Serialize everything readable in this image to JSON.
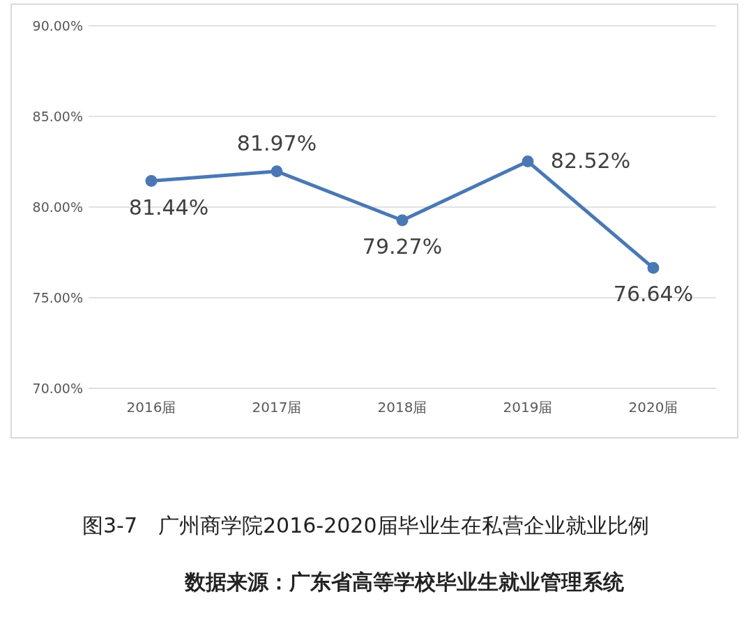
{
  "chart_data": {
    "type": "line",
    "title": "图3-7　广州商学院2016-2020届毕业生在私营企业就业比例",
    "annotations": [
      "数据来源：广东省高等学校毕业生就业管理系统"
    ],
    "categories": [
      "2016届",
      "2017届",
      "2018届",
      "2019届",
      "2020届"
    ],
    "series": [
      {
        "color": "#4a78b4",
        "values": [
          81.44,
          81.97,
          79.27,
          82.52,
          76.64
        ],
        "value_labels": [
          "81.44%",
          "81.97%",
          "79.27%",
          "82.52%",
          "76.64%"
        ]
      }
    ],
    "ylim": [
      70,
      90
    ],
    "yticks": [
      {
        "value": 70,
        "label": "70.00%"
      },
      {
        "value": 75,
        "label": "75.00%"
      },
      {
        "value": 80,
        "label": "80.00%"
      },
      {
        "value": 85,
        "label": "85.00%"
      },
      {
        "value": 90,
        "label": "90.00%"
      }
    ],
    "grid": "y",
    "marker": "circle",
    "line_style": "solid",
    "legend": false
  }
}
